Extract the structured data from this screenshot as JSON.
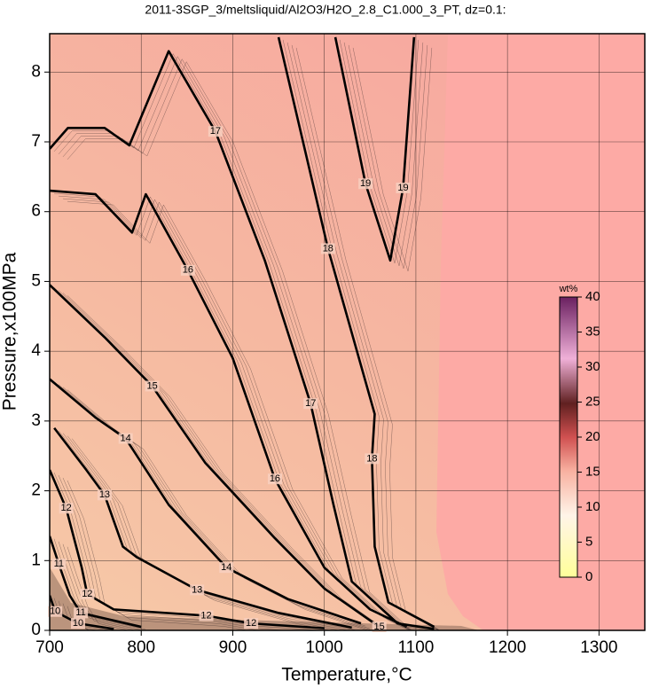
{
  "chart_data": {
    "type": "contour",
    "title": "2011-3SGP_3/meltsliquid/Al2O3/H2O_2.8_C1.000_3_PT, dz=0.1:",
    "x_label": "Temperature,°C",
    "y_label": "Pressure,x100MPa",
    "xlim": [
      700,
      1350
    ],
    "ylim": [
      0,
      8.55
    ],
    "xticks": [
      700,
      800,
      900,
      1000,
      1100,
      1200,
      1300
    ],
    "yticks": [
      0,
      1,
      2,
      3,
      4,
      5,
      6,
      7,
      8
    ],
    "grid": true,
    "contours": [
      {
        "level": 10,
        "x": [
          700,
          706,
          731,
          770
        ],
        "y": [
          0.5,
          0.27,
          0.1,
          0.02
        ]
      },
      {
        "level": 11,
        "x": [
          700,
          710,
          722,
          734,
          800
        ],
        "y": [
          1.35,
          0.95,
          0.5,
          0.25,
          0.05
        ]
      },
      {
        "level": 12,
        "x": [
          700,
          718,
          735,
          741,
          770,
          871,
          920,
          1000
        ],
        "y": [
          2.3,
          1.75,
          0.9,
          0.52,
          0.3,
          0.21,
          0.1,
          0.03
        ]
      },
      {
        "level": 13,
        "x": [
          705,
          740,
          760,
          780,
          795,
          861,
          950,
          1030
        ],
        "y": [
          2.9,
          2.3,
          1.94,
          1.2,
          1.05,
          0.58,
          0.25,
          0.04
        ]
      },
      {
        "level": 14,
        "x": [
          700,
          750,
          783,
          830,
          893,
          960,
          1040
        ],
        "y": [
          3.6,
          3.05,
          2.75,
          1.8,
          0.9,
          0.45,
          0.1
        ]
      },
      {
        "level": 15,
        "x": [
          700,
          760,
          812,
          870,
          946,
          1000,
          1060
        ],
        "y": [
          4.95,
          4.2,
          3.5,
          2.4,
          1.32,
          0.6,
          0.05
        ]
      },
      {
        "level": 16,
        "x": [
          700,
          750,
          790,
          805,
          851,
          900,
          946,
          1000,
          1050,
          1090
        ],
        "y": [
          6.3,
          6.25,
          5.7,
          6.25,
          5.16,
          3.9,
          2.17,
          0.9,
          0.3,
          0.05
        ]
      },
      {
        "level": 17,
        "x": [
          700,
          720,
          760,
          787,
          830,
          881,
          935,
          985,
          1010,
          1030,
          1080,
          1120
        ],
        "y": [
          6.9,
          7.2,
          7.2,
          6.95,
          8.3,
          7.15,
          5.3,
          3.25,
          1.8,
          0.7,
          0.1,
          0.02
        ]
      },
      {
        "level": 18,
        "x": [
          950,
          1004,
          1055,
          1052,
          1055,
          1070,
          1120
        ],
        "y": [
          8.5,
          5.47,
          3.1,
          2.46,
          1.2,
          0.4,
          0.05
        ]
      },
      {
        "level": 19,
        "x": [
          1012,
          1045,
          1072,
          1086,
          1098
        ],
        "y": [
          8.5,
          6.4,
          5.3,
          6.34,
          8.5
        ]
      }
    ],
    "colorbar": {
      "label": "wt%",
      "lim": [
        0,
        40
      ],
      "ticks": [
        0,
        5,
        10,
        15,
        20,
        25,
        30,
        35,
        40
      ]
    }
  }
}
